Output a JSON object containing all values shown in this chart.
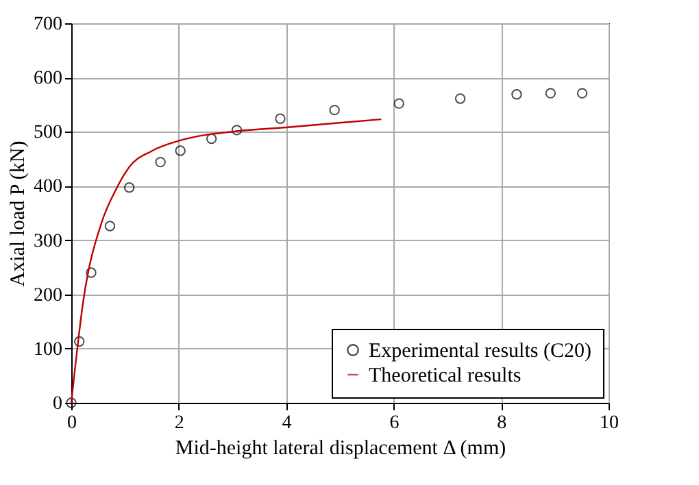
{
  "chart_data": {
    "type": "scatter",
    "xlabel": "Mid-height lateral displacement Δ (mm)",
    "ylabel": "Axial load P (kN)",
    "xlim": [
      0,
      10
    ],
    "xticks": [
      0,
      2,
      4,
      6,
      8,
      10
    ],
    "ylim": [
      0,
      700
    ],
    "yticks": [
      0,
      100,
      200,
      300,
      400,
      500,
      600,
      700
    ],
    "grid": true,
    "legend": "bottom right",
    "series": [
      {
        "name": "Experimental results (C20)",
        "marker": "circle",
        "color": "#000000",
        "x": [
          0,
          0.15,
          0.37,
          0.72,
          1.08,
          1.66,
          2.03,
          2.61,
          3.08,
          3.89,
          4.9,
          6.1,
          7.24,
          8.29,
          8.92,
          9.51
        ],
        "values": [
          0,
          113,
          240,
          326,
          397,
          444,
          465,
          487,
          503,
          524,
          540,
          552,
          561,
          569,
          571,
          571
        ]
      },
      {
        "name": "Theoretical results",
        "type": "line",
        "marker": "none",
        "color": "#c00000",
        "x": [
          0,
          0.23,
          0.57,
          0.83,
          1.08,
          1.51,
          2.03,
          3.08,
          4.0,
          5.77
        ],
        "values": [
          0,
          192,
          334,
          393,
          435,
          465,
          484,
          501,
          508,
          523
        ]
      }
    ]
  }
}
